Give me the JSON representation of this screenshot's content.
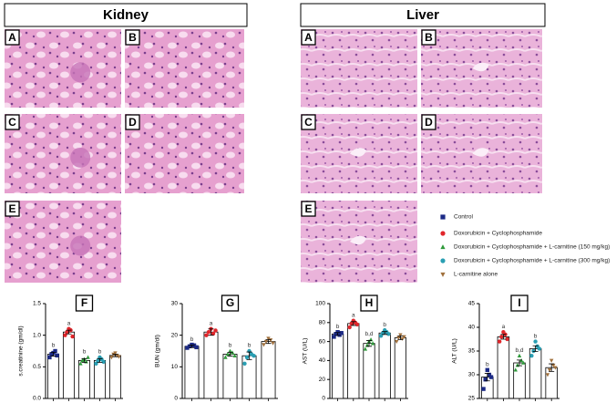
{
  "headers": [
    "Kidney",
    "Liver"
  ],
  "kidney_panels": [
    "A",
    "B",
    "C",
    "D",
    "E"
  ],
  "liver_panels": [
    "A",
    "B",
    "C",
    "D",
    "E"
  ],
  "legend": {
    "items": [
      {
        "name": "Control",
        "color": "#1c2a86",
        "marker": "square"
      },
      {
        "name": "Doxorubicin + Cyclophosphamide",
        "color": "#e0262b",
        "marker": "circle"
      },
      {
        "name": "Doxorubicin + Cyclophosphamide + L-carnitine (150 mg/kg)",
        "color": "#2e9a3a",
        "marker": "triangle"
      },
      {
        "name": "Doxorubicin + Cyclophosphamide + L-carnitine (300 mg/kg)",
        "color": "#2a9fb3",
        "marker": "circle"
      },
      {
        "name": "L-carnitine alone",
        "color": "#a0703c",
        "marker": "triangle-down"
      }
    ]
  },
  "chart_data": [
    {
      "type": "bar",
      "title": "F",
      "ylabel": "s.creatinine (gm/dl)",
      "ylim": [
        0,
        1.5
      ],
      "yticks": [
        {
          "value": 0,
          "label": "0.0"
        },
        0.5,
        {
          "value": 1,
          "label": "1.0"
        },
        1.5
      ],
      "values": [
        0.7,
        1.05,
        0.6,
        0.6,
        0.68
      ],
      "errors": [
        0.03,
        0.03,
        0.03,
        0.03,
        0.02
      ],
      "points": [
        [
          0.65,
          0.7,
          0.72,
          0.75,
          0.68
        ],
        [
          1.0,
          1.05,
          1.1,
          1.08,
          0.98
        ],
        [
          0.55,
          0.6,
          0.62,
          0.58,
          0.65
        ],
        [
          0.55,
          0.6,
          0.65,
          0.62,
          0.58
        ],
        [
          0.65,
          0.7,
          0.72,
          0.68,
          0.66
        ]
      ],
      "annotations": [
        "b",
        "a",
        "b",
        "b",
        null
      ]
    },
    {
      "type": "bar",
      "title": "G",
      "ylabel": "BUN (gm/dl)",
      "ylim": [
        0,
        30
      ],
      "yticks": [
        0,
        10,
        20,
        30
      ],
      "values": [
        16.5,
        21,
        14,
        13.5,
        18
      ],
      "errors": [
        0.4,
        1.0,
        0.6,
        1.2,
        0.6
      ],
      "points": [
        [
          16,
          16.5,
          17,
          16.8,
          16.2
        ],
        [
          20,
          21,
          22,
          20.5,
          21.5
        ],
        [
          13,
          14,
          15,
          14.5,
          13.5
        ],
        [
          11,
          13,
          15,
          14,
          13.5
        ],
        [
          17,
          18,
          19,
          18.5,
          17.5
        ]
      ],
      "annotations": [
        "b",
        "a",
        "b",
        "b",
        null
      ]
    },
    {
      "type": "bar",
      "title": "H",
      "ylabel": "AST (U/L)",
      "ylim": [
        0,
        100
      ],
      "yticks": [
        0,
        20,
        40,
        60,
        80,
        100
      ],
      "values": [
        68,
        79,
        58,
        69,
        64
      ],
      "errors": [
        1.5,
        2,
        3,
        1.5,
        2
      ],
      "points": [
        [
          65,
          68,
          70,
          67,
          69
        ],
        [
          75,
          79,
          82,
          80,
          78
        ],
        [
          52,
          56,
          60,
          62,
          58
        ],
        [
          66,
          69,
          72,
          70,
          68
        ],
        [
          60,
          64,
          67,
          63,
          65
        ]
      ],
      "annotations": [
        "b",
        "a",
        "b,d",
        "b",
        null
      ]
    },
    {
      "type": "bar",
      "title": "I",
      "ylabel": "ALT (U/L)",
      "ylim": [
        25,
        45
      ],
      "yticks": [
        25,
        30,
        35,
        40,
        45
      ],
      "values": [
        29.5,
        38,
        32.5,
        35.5,
        31.5
      ],
      "errors": [
        0.8,
        0.5,
        0.6,
        0.6,
        0.8
      ],
      "points": [
        [
          27,
          29,
          31,
          30,
          29.5
        ],
        [
          37,
          38,
          39,
          38.5,
          37.5
        ],
        [
          31,
          32,
          34,
          33,
          32.5
        ],
        [
          34,
          35,
          37,
          36,
          35.5
        ],
        [
          30,
          31,
          33,
          32,
          31.5
        ]
      ],
      "annotations": [
        "b",
        "a",
        "b,d",
        "b",
        null
      ]
    }
  ]
}
